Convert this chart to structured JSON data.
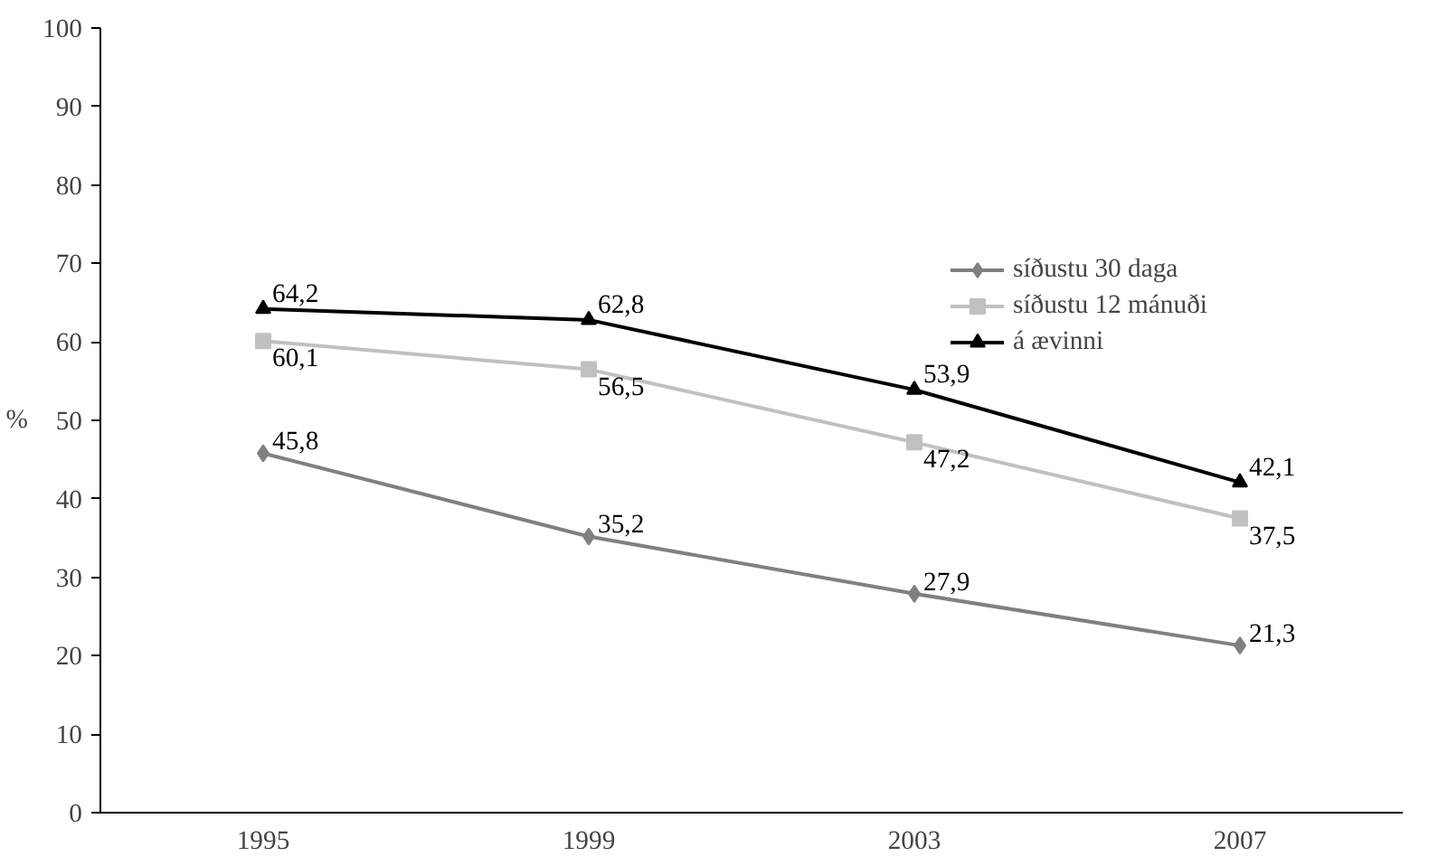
{
  "chart_data": {
    "type": "line",
    "ylabel": "%",
    "categories": [
      "1995",
      "1999",
      "2003",
      "2007"
    ],
    "series": [
      {
        "name": "síðustu 30 daga",
        "color": "#808080",
        "marker": "diamond",
        "values": [
          45.8,
          35.2,
          27.9,
          21.3
        ],
        "value_labels": [
          "45,8",
          "35,2",
          "27,9",
          "21,3"
        ]
      },
      {
        "name": "síðustu 12 mánuði",
        "color": "#c0c0c0",
        "marker": "square",
        "values": [
          60.1,
          56.5,
          47.2,
          37.5
        ],
        "value_labels": [
          "60,1",
          "56,5",
          "47,2",
          "37,5"
        ]
      },
      {
        "name": "á ævinni",
        "color": "#000000",
        "marker": "triangle",
        "values": [
          64.2,
          62.8,
          53.9,
          42.1
        ],
        "value_labels": [
          "64,2",
          "62,8",
          "53,9",
          "42,1"
        ]
      }
    ],
    "ylim": [
      0,
      100
    ],
    "yticks": [
      0,
      10,
      20,
      30,
      40,
      50,
      60,
      70,
      80,
      90,
      100
    ],
    "grid": false,
    "legend": "top right",
    "line_style": "solid"
  }
}
